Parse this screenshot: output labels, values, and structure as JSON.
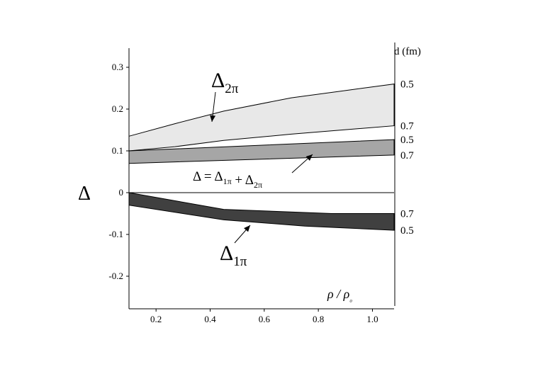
{
  "chart_data": {
    "type": "area",
    "title": "",
    "xlabel": "ρ / ρ₀",
    "ylabel": "Δ",
    "xlim": [
      0.1,
      1.08
    ],
    "ylim": [
      -0.25,
      0.33
    ],
    "x_ticks": [
      "0.2",
      "0.4",
      "0.6",
      "0.8",
      "1.0"
    ],
    "x_tick_values": [
      0.2,
      0.4,
      0.6,
      0.8,
      1.0
    ],
    "y_ticks": [
      "0.3",
      "0.2",
      "0.1",
      "0",
      "-0.1",
      "-0.2"
    ],
    "y_tick_values": [
      0.3,
      0.2,
      0.1,
      0.0,
      -0.1,
      -0.2
    ],
    "right_axis_label": "d (fm)",
    "grid": false,
    "series": [
      {
        "name": "Δ2π",
        "fill": "#e8e8e8",
        "upper": {
          "x": [
            0.1,
            0.27,
            0.45,
            0.7,
            1.08
          ],
          "y": [
            0.135,
            0.165,
            0.195,
            0.227,
            0.26
          ]
        },
        "lower": {
          "x": [
            0.1,
            0.27,
            0.45,
            0.7,
            1.08
          ],
          "y": [
            0.1,
            0.11,
            0.125,
            0.14,
            0.16
          ]
        },
        "d_upper": "0.5",
        "d_lower": "0.7"
      },
      {
        "name": "Δ = Δ1π + Δ2π",
        "fill": "#a6a6a6",
        "upper": {
          "x": [
            0.1,
            1.08
          ],
          "y": [
            0.1,
            0.127
          ]
        },
        "lower": {
          "x": [
            0.1,
            1.08
          ],
          "y": [
            0.07,
            0.09
          ]
        },
        "d_upper": "0.5",
        "d_lower": "0.7"
      },
      {
        "name": "Δ1π",
        "fill": "#404040",
        "upper": {
          "x": [
            0.1,
            0.45,
            0.85,
            1.08
          ],
          "y": [
            0.0,
            -0.04,
            -0.05,
            -0.05
          ]
        },
        "lower": {
          "x": [
            0.1,
            0.45,
            0.75,
            1.08
          ],
          "y": [
            -0.03,
            -0.065,
            -0.08,
            -0.09
          ]
        },
        "d_upper": "0.7",
        "d_lower": "0.5"
      }
    ],
    "zero_line": true
  }
}
